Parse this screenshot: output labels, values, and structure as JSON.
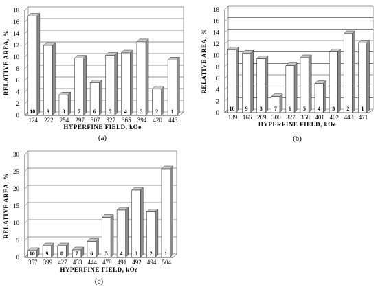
{
  "chart_data": [
    {
      "type": "bar",
      "caption": "(a)",
      "xlabel": "HYPERFINE  FIELD,  kOe",
      "ylabel": "RELATIVE  AREA,  %",
      "ylim": [
        0,
        18
      ],
      "yticks": [
        "0",
        "2",
        "4",
        "6",
        "8",
        "10",
        "12",
        "14",
        "16",
        "18"
      ],
      "grid": true,
      "categories": [
        "124",
        "222",
        "254",
        "297",
        "307",
        "327",
        "365",
        "394",
        "420",
        "443"
      ],
      "bar_labels": [
        "10",
        "9",
        "8",
        "7",
        "6",
        "5",
        "4",
        "3",
        "2",
        "1"
      ],
      "values": [
        17.0,
        12.0,
        3.5,
        9.8,
        5.6,
        10.3,
        10.7,
        12.6,
        4.5,
        9.5
      ]
    },
    {
      "type": "bar",
      "caption": "(b)",
      "xlabel": "HYPERFINE  FIELD,  kOe",
      "ylabel": "RELATIVE  AREA,  %",
      "ylim": [
        0,
        18
      ],
      "yticks": [
        "0",
        "2",
        "4",
        "6",
        "8",
        "10",
        "12",
        "14",
        "16",
        "18"
      ],
      "grid": true,
      "categories": [
        "139",
        "166",
        "269",
        "300",
        "327",
        "358",
        "401",
        "402",
        "443",
        "471"
      ],
      "bar_labels": [
        "10",
        "9",
        "8",
        "7",
        "6",
        "5",
        "4",
        "3",
        "2",
        "1"
      ],
      "values": [
        11.0,
        10.4,
        9.4,
        2.8,
        8.2,
        9.6,
        5.1,
        10.6,
        13.8,
        12.2
      ]
    },
    {
      "type": "bar",
      "caption": "(c)",
      "xlabel": "HYPERFINE  FIELD,  kOe",
      "ylabel": "RELATIVE  AREA,  %",
      "ylim": [
        0,
        30
      ],
      "yticks": [
        "0",
        "5",
        "10",
        "15",
        "20",
        "25",
        "30"
      ],
      "grid": true,
      "categories": [
        "357",
        "399",
        "427",
        "433",
        "444",
        "478",
        "491",
        "492",
        "494",
        "504"
      ],
      "bar_labels": [
        "10",
        "9",
        "8",
        "7",
        "6",
        "5",
        "4",
        "3",
        "2",
        "1"
      ],
      "values": [
        2.0,
        3.4,
        3.4,
        2.2,
        4.7,
        11.7,
        13.8,
        19.6,
        13.3,
        25.8
      ]
    }
  ]
}
